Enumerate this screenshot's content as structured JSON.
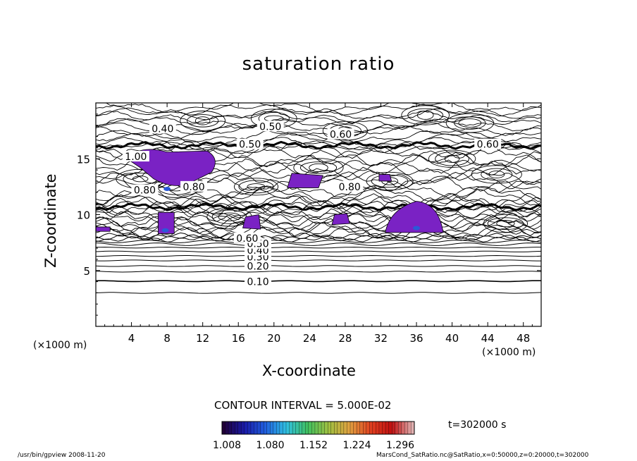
{
  "chart_data": {
    "type": "contour",
    "title": "saturation ratio",
    "xlabel": "X-coordinate",
    "ylabel": "Z-coordinate",
    "x_unit": "(×1000 m)",
    "z_unit": "(×1000 m)",
    "xlim": [
      0,
      50
    ],
    "ylim": [
      0,
      20
    ],
    "xticks": [
      "4",
      "8",
      "12",
      "16",
      "20",
      "24",
      "28",
      "32",
      "36",
      "40",
      "44",
      "48"
    ],
    "yticks": [
      "5",
      "10",
      "15"
    ],
    "contour_interval_text": "CONTOUR INTERVAL = 5.000E-02",
    "contour_labels": [
      "0.10",
      "0.20",
      "0.30",
      "0.40",
      "0.50",
      "0.60",
      "0.40",
      "0.50",
      "0.60",
      "0.60",
      "0.80",
      "0.80",
      "0.80",
      "1.00",
      "0.50"
    ],
    "colorbar": {
      "ticks": [
        "1.008",
        "1.080",
        "1.152",
        "1.224",
        "1.296"
      ],
      "colors": [
        "#200038",
        "#1a1aa8",
        "#2060e0",
        "#30c0e0",
        "#40c060",
        "#a0c040",
        "#e0a040",
        "#e04020",
        "#c01010",
        "#e0b0b0"
      ]
    },
    "supersaturated_color": "#7a22c4",
    "time_label": "t=302000 s",
    "grid": false
  },
  "footer": {
    "left": "/usr/bin/gpview   2008-11-20",
    "right": "MarsCond_SatRatio.nc@SatRatio,x=0:50000,z=0:20000,t=302000"
  }
}
